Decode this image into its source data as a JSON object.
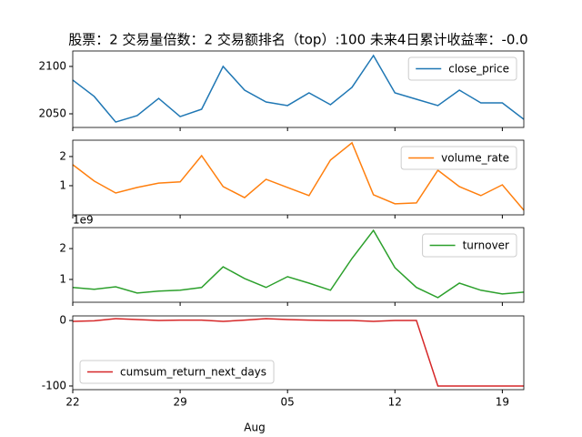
{
  "chart_data": [
    {
      "type": "line",
      "title": "股票：2  交易量倍数：2 交易额排名（top）:100 未来4日累计收益率：-0.0",
      "series": [
        {
          "name": "close_price",
          "color": "#1f77b4",
          "values": [
            2085.6,
            2068.3,
            2041.3,
            2048.1,
            2066.3,
            2047.1,
            2054.8,
            2100,
            2075,
            2062.5,
            2058.7,
            2072.1,
            2059.6,
            2077.9,
            2111.5,
            2072.1,
            2065.4,
            2058.7,
            2075,
            2061.5,
            2061.5,
            2044.2
          ]
        }
      ],
      "ylim": [
        2035.6,
        2116.3
      ],
      "yticks": [
        2050,
        2100
      ],
      "legend": "upper right"
    },
    {
      "type": "line",
      "series": [
        {
          "name": "volume_rate",
          "color": "#ff7f0e",
          "values": [
            1.72,
            1.16,
            0.75,
            0.94,
            1.09,
            1.13,
            2.03,
            0.97,
            0.59,
            1.22,
            0.94,
            0.66,
            1.88,
            2.47,
            0.69,
            0.38,
            0.41,
            1.53,
            0.97,
            0.66,
            1.03,
            0.16
          ]
        }
      ],
      "ylim": [
        0,
        2.56
      ],
      "yticks": [
        1,
        2
      ],
      "legend": "upper right"
    },
    {
      "type": "line",
      "offset_label": "1e9",
      "series": [
        {
          "name": "turnover",
          "color": "#2ca02c",
          "values": [
            0.74,
            0.68,
            0.76,
            0.56,
            0.62,
            0.65,
            0.74,
            1.41,
            1.03,
            0.74,
            1.09,
            0.88,
            0.65,
            1.68,
            2.59,
            1.38,
            0.74,
            0.41,
            0.88,
            0.65,
            0.53,
            0.59
          ]
        }
      ],
      "ylim": [
        0.26,
        2.68
      ],
      "yticks": [
        1,
        2
      ],
      "legend": "upper right"
    },
    {
      "type": "line",
      "xlabel": "Aug",
      "categories": [
        "22",
        null,
        null,
        null,
        null,
        "29",
        null,
        null,
        null,
        null,
        "05",
        null,
        null,
        null,
        null,
        "12",
        null,
        null,
        null,
        null,
        "19",
        null
      ],
      "series": [
        {
          "name": "cumsum_return_next_days",
          "color": "#d62728",
          "values": [
            -1.4,
            -0.5,
            2.8,
            1.4,
            0,
            0.5,
            0.5,
            -1.4,
            0.5,
            2.8,
            1.4,
            0.5,
            0,
            0,
            -1.4,
            0,
            0,
            -100,
            -100,
            -100,
            -100,
            -100
          ]
        }
      ],
      "ylim": [
        -105.6,
        7
      ],
      "yticks": [
        -100,
        0
      ],
      "legend": "lower left"
    }
  ]
}
